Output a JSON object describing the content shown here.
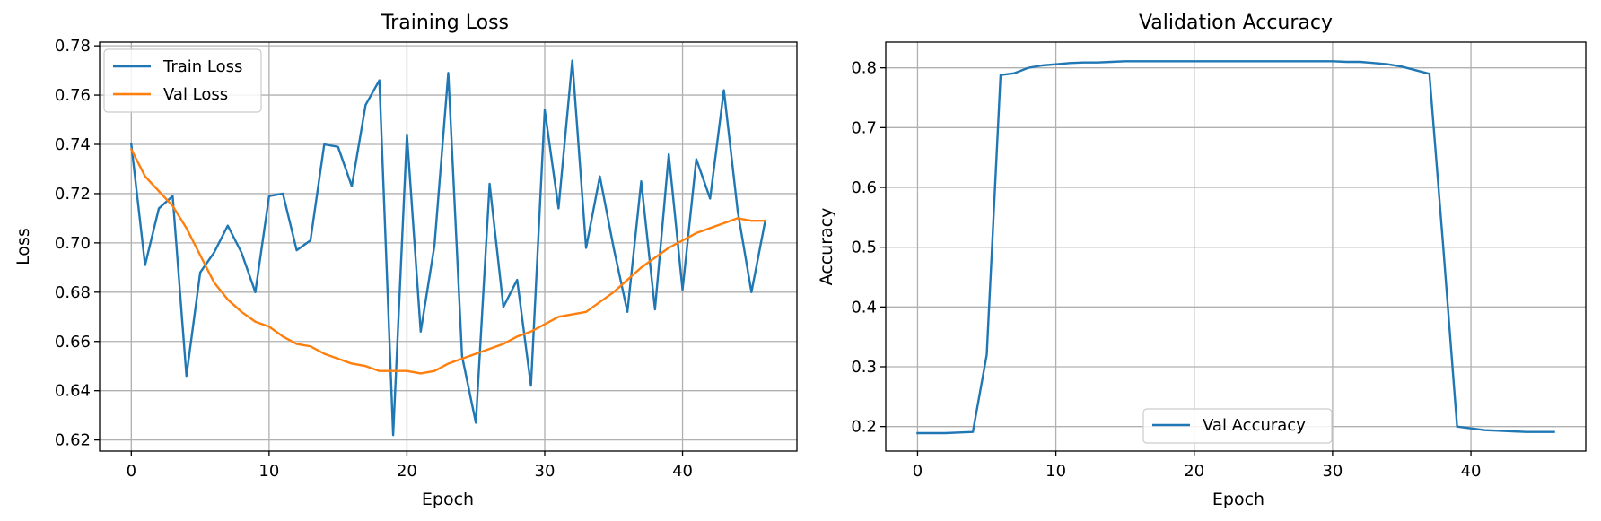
{
  "colors": {
    "series1": "#1f77b4",
    "series2": "#ff7f0e"
  },
  "chart_data": [
    {
      "type": "line",
      "title": "Training Loss",
      "xlabel": "Epoch",
      "ylabel": "Loss",
      "xlim": [
        -2.3,
        48.3
      ],
      "ylim": [
        0.6155,
        0.7815
      ],
      "xticks": [
        0,
        10,
        20,
        30,
        40
      ],
      "yticks": [
        0.62,
        0.64,
        0.66,
        0.68,
        0.7,
        0.72,
        0.74,
        0.76,
        0.78
      ],
      "grid": true,
      "legend": "upper-left",
      "series": [
        {
          "name": "Train Loss",
          "color": "#1f77b4",
          "x": [
            0,
            1,
            2,
            3,
            4,
            5,
            6,
            7,
            8,
            9,
            10,
            11,
            12,
            13,
            14,
            15,
            16,
            17,
            18,
            19,
            20,
            21,
            22,
            23,
            24,
            25,
            26,
            27,
            28,
            29,
            30,
            31,
            32,
            33,
            34,
            35,
            36,
            37,
            38,
            39,
            40,
            41,
            42,
            43,
            44,
            45,
            46
          ],
          "y": [
            0.74,
            0.691,
            0.714,
            0.719,
            0.646,
            0.688,
            0.696,
            0.707,
            0.696,
            0.68,
            0.719,
            0.72,
            0.697,
            0.701,
            0.74,
            0.739,
            0.723,
            0.756,
            0.766,
            0.622,
            0.744,
            0.664,
            0.699,
            0.769,
            0.654,
            0.627,
            0.724,
            0.674,
            0.685,
            0.642,
            0.754,
            0.714,
            0.774,
            0.698,
            0.727,
            0.698,
            0.672,
            0.725,
            0.673,
            0.736,
            0.681,
            0.734,
            0.718,
            0.762,
            0.713,
            0.68,
            0.709
          ]
        },
        {
          "name": "Val Loss",
          "color": "#ff7f0e",
          "x": [
            0,
            1,
            2,
            3,
            4,
            5,
            6,
            7,
            8,
            9,
            10,
            11,
            12,
            13,
            14,
            15,
            16,
            17,
            18,
            19,
            20,
            21,
            22,
            23,
            24,
            25,
            26,
            27,
            28,
            29,
            30,
            31,
            32,
            33,
            34,
            35,
            36,
            37,
            38,
            39,
            40,
            41,
            42,
            43,
            44,
            45,
            46
          ],
          "y": [
            0.738,
            0.727,
            0.721,
            0.715,
            0.706,
            0.695,
            0.684,
            0.677,
            0.672,
            0.668,
            0.666,
            0.662,
            0.659,
            0.658,
            0.655,
            0.653,
            0.651,
            0.65,
            0.648,
            0.648,
            0.648,
            0.647,
            0.648,
            0.651,
            0.653,
            0.655,
            0.657,
            0.659,
            0.662,
            0.664,
            0.667,
            0.67,
            0.671,
            0.672,
            0.676,
            0.68,
            0.685,
            0.69,
            0.694,
            0.698,
            0.701,
            0.704,
            0.706,
            0.708,
            0.71,
            0.709,
            0.709
          ]
        }
      ]
    },
    {
      "type": "line",
      "title": "Validation Accuracy",
      "xlabel": "Epoch",
      "ylabel": "Accuracy",
      "xlim": [
        -2.3,
        48.3
      ],
      "ylim": [
        0.159,
        0.843
      ],
      "xticks": [
        0,
        10,
        20,
        30,
        40
      ],
      "yticks": [
        0.2,
        0.3,
        0.4,
        0.5,
        0.6,
        0.7,
        0.8
      ],
      "grid": true,
      "legend": "lower-center",
      "series": [
        {
          "name": "Val Accuracy",
          "color": "#1f77b4",
          "x": [
            0,
            1,
            2,
            3,
            4,
            5,
            6,
            7,
            8,
            9,
            10,
            11,
            12,
            13,
            14,
            15,
            16,
            17,
            18,
            19,
            20,
            21,
            22,
            23,
            24,
            25,
            26,
            27,
            28,
            29,
            30,
            31,
            32,
            33,
            34,
            35,
            36,
            37,
            38,
            39,
            40,
            41,
            42,
            43,
            44,
            45,
            46
          ],
          "y": [
            0.189,
            0.189,
            0.189,
            0.19,
            0.191,
            0.32,
            0.788,
            0.791,
            0.8,
            0.804,
            0.806,
            0.808,
            0.809,
            0.809,
            0.81,
            0.811,
            0.811,
            0.811,
            0.811,
            0.811,
            0.811,
            0.811,
            0.811,
            0.811,
            0.811,
            0.811,
            0.811,
            0.811,
            0.811,
            0.811,
            0.811,
            0.81,
            0.81,
            0.808,
            0.806,
            0.802,
            0.796,
            0.79,
            0.5,
            0.2,
            0.197,
            0.194,
            0.193,
            0.192,
            0.191,
            0.191,
            0.191
          ]
        }
      ]
    }
  ]
}
